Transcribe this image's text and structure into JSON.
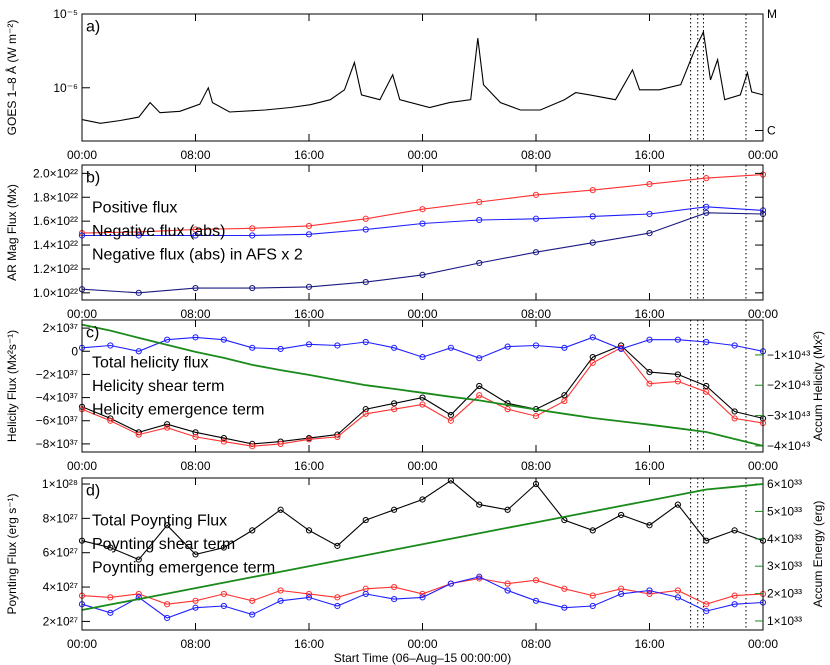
{
  "chart_data": [
    {
      "type": "line",
      "panel_label": "a)",
      "ylabel": "GOES 1–8 Å (W m⁻²)",
      "ylog": true,
      "xlim": [
        0,
        48
      ],
      "xticks": [
        {
          "value": 0,
          "label": "00:00"
        },
        {
          "value": 8,
          "label": "08:00"
        },
        {
          "value": 16,
          "label": "16:00"
        },
        {
          "value": 24,
          "label": "00:00"
        },
        {
          "value": 32,
          "label": "08:00"
        },
        {
          "value": 40,
          "label": "16:00"
        },
        {
          "value": 48,
          "label": "00:00"
        }
      ],
      "ylim": [
        1.9e-07,
        1e-05
      ],
      "yticks": [
        {
          "value": 1e-05,
          "label": "10⁻⁵"
        },
        {
          "value": 1e-06,
          "label": "10⁻⁶"
        }
      ],
      "y2lim": [
        1.9e-07,
        1e-05
      ],
      "y2ticks": [
        {
          "value": 1e-05,
          "label": "M"
        },
        {
          "value": 1e-06,
          "label": "C"
        }
      ],
      "vlines": [
        42.9,
        43.4,
        43.8,
        46.8
      ],
      "x": [
        0,
        1.3,
        2.7,
        4.0,
        4.8,
        5.5,
        6.9,
        8.3,
        8.9,
        9.2,
        10.4,
        12.9,
        14.7,
        16.1,
        17.5,
        18.5,
        19.2,
        19.7,
        21.0,
        21.9,
        22.4,
        24.5,
        25.9,
        27.4,
        27.9,
        28.3,
        29.5,
        30.9,
        32.3,
        34.0,
        34.8,
        35.8,
        37.6,
        38.8,
        39.3,
        40.7,
        42.2,
        43.2,
        43.8,
        44.3,
        44.8,
        45.3,
        46.4,
        46.9,
        47.2,
        48
      ],
      "series": [
        {
          "color": "#000000",
          "values": [
            3.7e-07,
            3.3e-07,
            3.6e-07,
            4e-07,
            6.3e-07,
            4.6e-07,
            4.8e-07,
            6e-07,
            1e-06,
            6.3e-07,
            4.7e-07,
            5e-07,
            5.4e-07,
            5.9e-07,
            6.9e-07,
            9.4e-07,
            2.2e-06,
            8e-07,
            6.9e-07,
            1.5e-06,
            6.9e-07,
            5.4e-07,
            6.3e-07,
            6.9e-07,
            4.7e-06,
            1.1e-06,
            6.3e-07,
            5e-07,
            5e-07,
            6.9e-07,
            8.6e-07,
            8e-07,
            6.9e-07,
            1.75e-06,
            9.4e-07,
            9.4e-07,
            1.1e-06,
            3.3e-06,
            5.7e-06,
            1.28e-06,
            2.4e-06,
            6.9e-07,
            8e-07,
            1.6e-06,
            8.8e-07,
            8e-07
          ]
        }
      ]
    },
    {
      "type": "line",
      "panel_label": "b)",
      "ylabel": "AR Mag Flux (Mx)",
      "xlim": [
        0,
        48
      ],
      "xticks": [
        {
          "value": 0,
          "label": "00:00"
        },
        {
          "value": 8,
          "label": "08:00"
        },
        {
          "value": 16,
          "label": "16:00"
        },
        {
          "value": 24,
          "label": "00:00"
        },
        {
          "value": 32,
          "label": "08:00"
        },
        {
          "value": 40,
          "label": "16:00"
        },
        {
          "value": 48,
          "label": "00:00"
        }
      ],
      "ylim": [
        9.4e+21,
        2.07e+22
      ],
      "yticks": [
        {
          "value": 1e+22,
          "label": "1.0×10²²"
        },
        {
          "value": 1.2e+22,
          "label": "1.2×10²²"
        },
        {
          "value": 1.4e+22,
          "label": "1.4×10²²"
        },
        {
          "value": 1.6e+22,
          "label": "1.6×10²²"
        },
        {
          "value": 1.8e+22,
          "label": "1.8×10²²"
        },
        {
          "value": 2e+22,
          "label": "2.0×10²²"
        }
      ],
      "vlines": [
        42.9,
        43.4,
        43.8,
        46.8
      ],
      "x": [
        0,
        4,
        8,
        12,
        16,
        20,
        24,
        28,
        32,
        36,
        40,
        44,
        48
      ],
      "series": [
        {
          "name": "Positive flux",
          "color": "#ff3030",
          "marker": "circle",
          "values": [
            1.5e+22,
            1.51e+22,
            1.53e+22,
            1.54e+22,
            1.56e+22,
            1.62e+22,
            1.7e+22,
            1.76e+22,
            1.82e+22,
            1.86e+22,
            1.91e+22,
            1.96e+22,
            1.99e+22
          ]
        },
        {
          "name": "Negative flux (abs)",
          "color": "#2020ff",
          "marker": "circle",
          "values": [
            1.48e+22,
            1.48e+22,
            1.48e+22,
            1.48e+22,
            1.49e+22,
            1.53e+22,
            1.58e+22,
            1.61e+22,
            1.62e+22,
            1.64e+22,
            1.66e+22,
            1.72e+22,
            1.69e+22
          ]
        },
        {
          "name": "Negative flux (abs) in AFS x 2",
          "color": "#1a1a80",
          "marker": "circle",
          "values": [
            1.03e+22,
            1e+22,
            1.04e+22,
            1.04e+22,
            1.05e+22,
            1.09e+22,
            1.15e+22,
            1.25e+22,
            1.34e+22,
            1.42e+22,
            1.5e+22,
            1.67e+22,
            1.66e+22
          ]
        }
      ]
    },
    {
      "type": "line",
      "panel_label": "c)",
      "ylabel": "Helicity Flux (Mx²s⁻¹)",
      "y2label": "Accum Helicity (Mx²)",
      "xlim": [
        0,
        48
      ],
      "xticks": [
        {
          "value": 0,
          "label": "00:00"
        },
        {
          "value": 8,
          "label": "08:00"
        },
        {
          "value": 16,
          "label": "16:00"
        },
        {
          "value": 24,
          "label": "00:00"
        },
        {
          "value": 32,
          "label": "08:00"
        },
        {
          "value": 40,
          "label": "16:00"
        },
        {
          "value": 48,
          "label": "00:00"
        }
      ],
      "ylim": [
        -8.7e+37,
        2.7e+37
      ],
      "yticks": [
        {
          "value": 2e+37,
          "label": "2×10³⁷"
        },
        0,
        {
          "value": -2e+37,
          "label": "−2×10³⁷"
        },
        {
          "value": -4e+37,
          "label": "−4×10³⁷"
        },
        {
          "value": -6e+37,
          "label": "−6×10³⁷"
        },
        {
          "value": -8e+37,
          "label": "−8×10³⁷"
        }
      ],
      "y2lim": [
        -4.2e+43,
        1.5e+42
      ],
      "y2ticks": [
        {
          "value": -1e+43,
          "label": "−1×10⁴³"
        },
        {
          "value": -2e+43,
          "label": "−2×10⁴³"
        },
        {
          "value": -3e+43,
          "label": "−3×10⁴³"
        },
        {
          "value": -4e+43,
          "label": "−4×10⁴³"
        }
      ],
      "vlines": [
        42.9,
        43.4,
        43.8,
        46.8
      ],
      "x": [
        0,
        2,
        4,
        6,
        8,
        10,
        12,
        14,
        16,
        18,
        20,
        22,
        24,
        26,
        28,
        30,
        32,
        34,
        36,
        38,
        40,
        42,
        44,
        46,
        48
      ],
      "series": [
        {
          "name": "Total helicity flux",
          "color": "#000000",
          "marker": "circle",
          "values": [
            -4.8e+37,
            -5.8e+37,
            -7e+37,
            -6.3e+37,
            -7e+37,
            -7.5e+37,
            -8e+37,
            -7.8e+37,
            -7.5e+37,
            -7.2e+37,
            -5e+37,
            -4.5e+37,
            -4e+37,
            -5.5e+37,
            -3e+37,
            -4.5e+37,
            -5e+37,
            -3.8e+37,
            -5e+36,
            5e+36,
            -1.8e+37,
            -2e+37,
            -3e+37,
            -5.2e+37,
            -5.8e+37
          ]
        },
        {
          "name": "Helicity shear term",
          "color": "#ff3030",
          "marker": "circle",
          "values": [
            -5e+37,
            -6e+37,
            -7.2e+37,
            -6.6e+37,
            -7.4e+37,
            -7.8e+37,
            -8.2e+37,
            -8e+37,
            -7.6e+37,
            -7.4e+37,
            -5.4e+37,
            -5e+37,
            -4.6e+37,
            -6e+37,
            -3.8e+37,
            -5e+37,
            -5.6e+37,
            -4.3e+37,
            -1e+37,
            3e+36,
            -2.8e+37,
            -2.6e+37,
            -3.5e+37,
            -5.8e+37,
            -6.2e+37
          ]
        },
        {
          "name": "Helicity emergence term",
          "color": "#2020ff",
          "marker": "circle",
          "values": [
            3e+36,
            5e+36,
            0.0,
            1e+37,
            1.2e+37,
            1e+37,
            3e+36,
            2e+36,
            6e+36,
            5e+36,
            8e+36,
            3e+36,
            -5e+36,
            3e+36,
            -6e+36,
            4e+36,
            5e+36,
            3e+36,
            1.2e+37,
            2e+36,
            1e+37,
            1e+37,
            8e+36,
            5e+36,
            0.0
          ]
        },
        {
          "color": "#1a8a1a",
          "axis": "y2",
          "values": [
            0.0,
            -2e+42,
            -4.4e+42,
            -6.7e+42,
            -9e+42,
            -1.1e+43,
            -1.33e+43,
            -1.5e+43,
            -1.66e+43,
            -1.83e+43,
            -2e+43,
            -2.12e+43,
            -2.25e+43,
            -2.38e+43,
            -2.5e+43,
            -2.65e+43,
            -2.8e+43,
            -2.94e+43,
            -3.08e+43,
            -3.19e+43,
            -3.3e+43,
            -3.42e+43,
            -3.54e+43,
            -3.77e+43,
            -4e+43
          ]
        }
      ]
    },
    {
      "type": "line",
      "panel_label": "d)",
      "ylabel": "Poynting Flux (erg s⁻¹)",
      "y2label": "Accum Energy (erg)",
      "xlabel": "Start Time (06–Aug–15 00:00:00)",
      "xlim": [
        0,
        48
      ],
      "xticks": [
        {
          "value": 0,
          "label": "00:00"
        },
        {
          "value": 8,
          "label": "08:00"
        },
        {
          "value": 16,
          "label": "16:00"
        },
        {
          "value": 24,
          "label": "00:00"
        },
        {
          "value": 32,
          "label": "08:00"
        },
        {
          "value": 40,
          "label": "16:00"
        },
        {
          "value": 48,
          "label": "00:00"
        }
      ],
      "ylim": [
        1.5e+27,
        1.035e+28
      ],
      "yticks": [
        {
          "value": 1e+28,
          "label": "1×10²⁸"
        },
        {
          "value": 8e+27,
          "label": "8×10²⁷"
        },
        {
          "value": 6e+27,
          "label": "6×10²⁷"
        },
        {
          "value": 4e+27,
          "label": "4×10²⁷"
        },
        {
          "value": 2e+27,
          "label": "2×10²⁷"
        }
      ],
      "y2lim": [
        6.7e+32,
        6.22e+33
      ],
      "y2ticks": [
        {
          "value": 6e+33,
          "label": "6×10³³"
        },
        {
          "value": 5e+33,
          "label": "5×10³³"
        },
        {
          "value": 4e+33,
          "label": "4×10³³"
        },
        {
          "value": 3e+33,
          "label": "3×10³³"
        },
        {
          "value": 2e+33,
          "label": "2×10³³"
        },
        {
          "value": 1e+33,
          "label": "1×10³³"
        }
      ],
      "vlines": [
        42.9,
        43.4,
        43.8,
        46.8
      ],
      "x": [
        0,
        2,
        4,
        6,
        8,
        10,
        12,
        14,
        16,
        18,
        20,
        22,
        24,
        26,
        28,
        30,
        32,
        34,
        36,
        38,
        40,
        42,
        44,
        46,
        48
      ],
      "series": [
        {
          "name": "Total Poynting Flux",
          "color": "#000000",
          "marker": "circle",
          "values": [
            6.7e+27,
            6.3e+27,
            5.6e+27,
            7.6e+27,
            5.9e+27,
            6.3e+27,
            7.3e+27,
            8.5e+27,
            7.3e+27,
            6.4e+27,
            7.9e+27,
            8.5e+27,
            9.1e+27,
            1.02e+28,
            8.8e+27,
            8.5e+27,
            1e+28,
            7.9e+27,
            7.3e+27,
            8.2e+27,
            7.6e+27,
            8.8e+27,
            6.7e+27,
            7.3e+27,
            6.7e+27
          ]
        },
        {
          "name": "Poynting shear term",
          "color": "#ff3030",
          "marker": "circle",
          "values": [
            3.5e+27,
            3.4e+27,
            3.6e+27,
            3e+27,
            3.2e+27,
            3.6e+27,
            3.2e+27,
            3.8e+27,
            3.6e+27,
            3.4e+27,
            3.9e+27,
            4e+27,
            3.6e+27,
            4.2e+27,
            4.5e+27,
            4.2e+27,
            4.4e+27,
            3.9e+27,
            3.5e+27,
            3.9e+27,
            3.6e+27,
            3.8e+27,
            3e+27,
            3.5e+27,
            3.6e+27
          ]
        },
        {
          "name": "Poynting emergence term",
          "color": "#2020ff",
          "marker": "circle",
          "values": [
            3e+27,
            2.5e+27,
            3.4e+27,
            2.2e+27,
            2.8e+27,
            2.9e+27,
            2.4e+27,
            3.2e+27,
            3.4e+27,
            2.9e+27,
            3.6e+27,
            3.3e+27,
            3.4e+27,
            4.2e+27,
            4.6e+27,
            3.8e+27,
            3.2e+27,
            2.8e+27,
            2.9e+27,
            3.6e+27,
            3.8e+27,
            3.4e+27,
            2.6e+27,
            3e+27,
            3.1e+27
          ]
        },
        {
          "color": "#1a8a1a",
          "axis": "y2",
          "values": [
            1.4e+33,
            1.6e+33,
            1.8e+33,
            2e+33,
            2.2e+33,
            2.4e+33,
            2.6e+33,
            2.8e+33,
            3e+33,
            3.2e+33,
            3.4e+33,
            3.6e+33,
            3.8e+33,
            4e+33,
            4.2e+33,
            4.4e+33,
            4.6e+33,
            4.8e+33,
            5e+33,
            5.2e+33,
            5.4e+33,
            5.6e+33,
            5.8e+33,
            5.9e+33,
            6e+33
          ]
        }
      ]
    }
  ]
}
